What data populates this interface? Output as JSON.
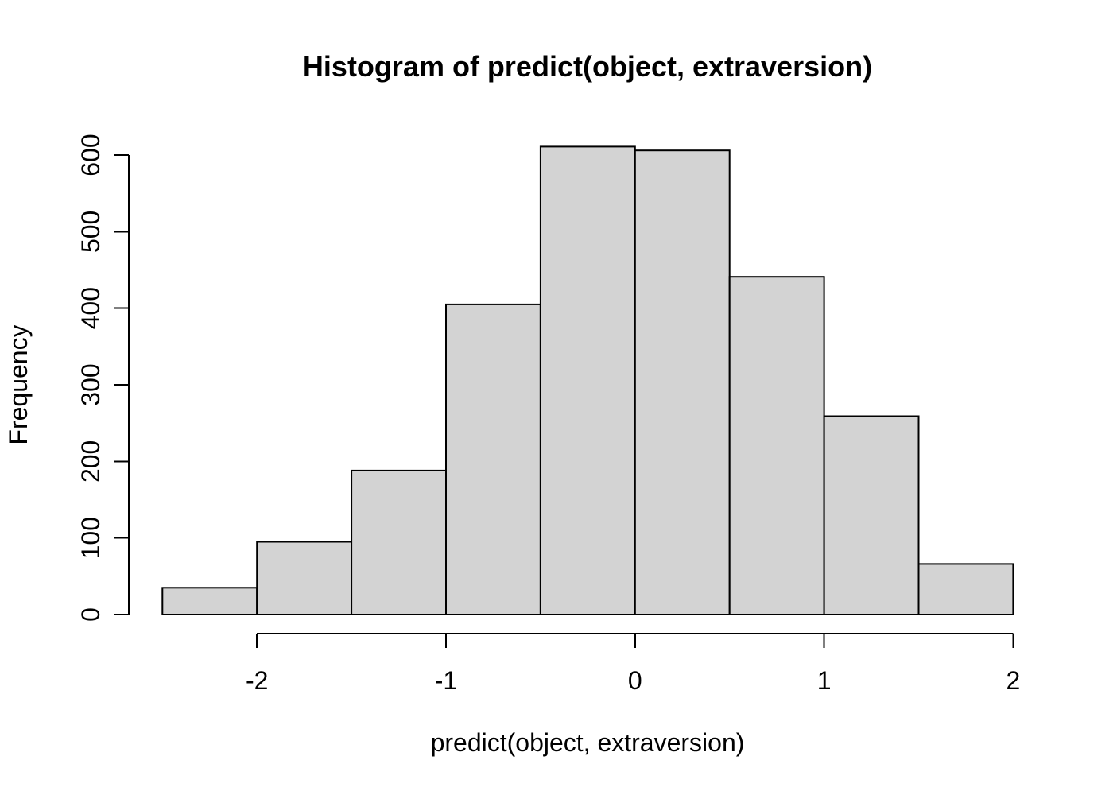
{
  "colors": {
    "background": "#ffffff",
    "bar_fill": "#d3d3d3",
    "bar_border": "#000000",
    "axis": "#000000",
    "text": "#000000"
  },
  "chart_data": {
    "type": "bar",
    "subtype": "histogram",
    "title": "Histogram of predict(object, extraversion)",
    "xlabel": "predict(object, extraversion)",
    "ylabel": "Frequency",
    "bin_edges": [
      -2.5,
      -2.0,
      -1.5,
      -1.0,
      -0.5,
      0.0,
      0.5,
      1.0,
      1.5,
      2.0
    ],
    "counts": [
      35,
      95,
      188,
      405,
      611,
      606,
      441,
      259,
      66
    ],
    "x_ticks": [
      -2,
      -1,
      0,
      1,
      2
    ],
    "x_tick_labels": [
      "-2",
      "-1",
      "0",
      "1",
      "2"
    ],
    "y_ticks": [
      0,
      100,
      200,
      300,
      400,
      500,
      600
    ],
    "y_tick_labels": [
      "0",
      "100",
      "200",
      "300",
      "400",
      "500",
      "600"
    ],
    "xlim": [
      -2.5,
      2.0
    ],
    "ylim": [
      0,
      600
    ],
    "grid": false,
    "legend": null
  }
}
